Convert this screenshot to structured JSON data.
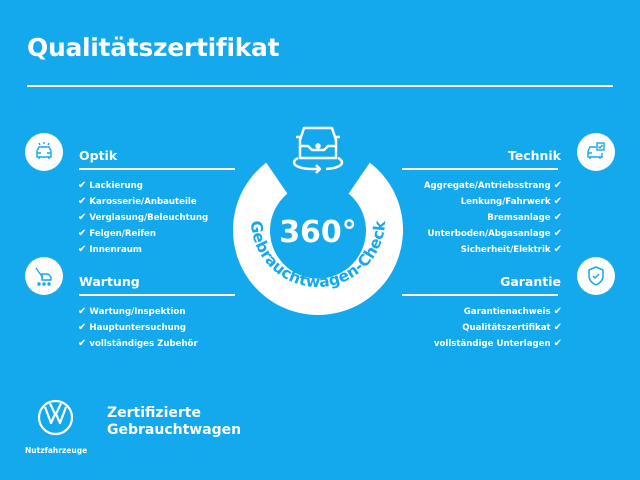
{
  "title": "Qualitätszertifikat",
  "colors": {
    "background": "#14a9ec",
    "foreground": "#ffffff"
  },
  "center_badge": {
    "number": "360°",
    "arc_text": "Gebrauchtwagen-Check",
    "icon": "car-rotate-icon"
  },
  "sections": {
    "optik": {
      "title": "Optik",
      "icon": "car-lights-icon",
      "items": [
        "Lackierung",
        "Karosserie/Anbauteile",
        "Verglasung/Beleuchtung",
        "Felgen/Reifen",
        "Innenraum"
      ]
    },
    "wartung": {
      "title": "Wartung",
      "icon": "service-tools-icon",
      "items": [
        "Wartung/Inspektion",
        "Hauptuntersuchung",
        "vollständiges Zubehör"
      ]
    },
    "technik": {
      "title": "Technik",
      "icon": "car-diagnostics-icon",
      "items": [
        "Aggregate/Antriebsstrang",
        "Lenkung/Fahrwerk",
        "Bremsanlage",
        "Unterboden/Abgasanlage",
        "Sicherheit/Elektrik"
      ]
    },
    "garantie": {
      "title": "Garantie",
      "icon": "shield-check-icon",
      "items": [
        "Garantienachweis",
        "Qualitätszertifikat",
        "vollständige Unterlagen"
      ]
    }
  },
  "check_glyph": "✔",
  "footer": {
    "logo_label": "Nutzfahrzeuge",
    "line1": "Zertifizierte",
    "line2": "Gebrauchtwagen"
  }
}
